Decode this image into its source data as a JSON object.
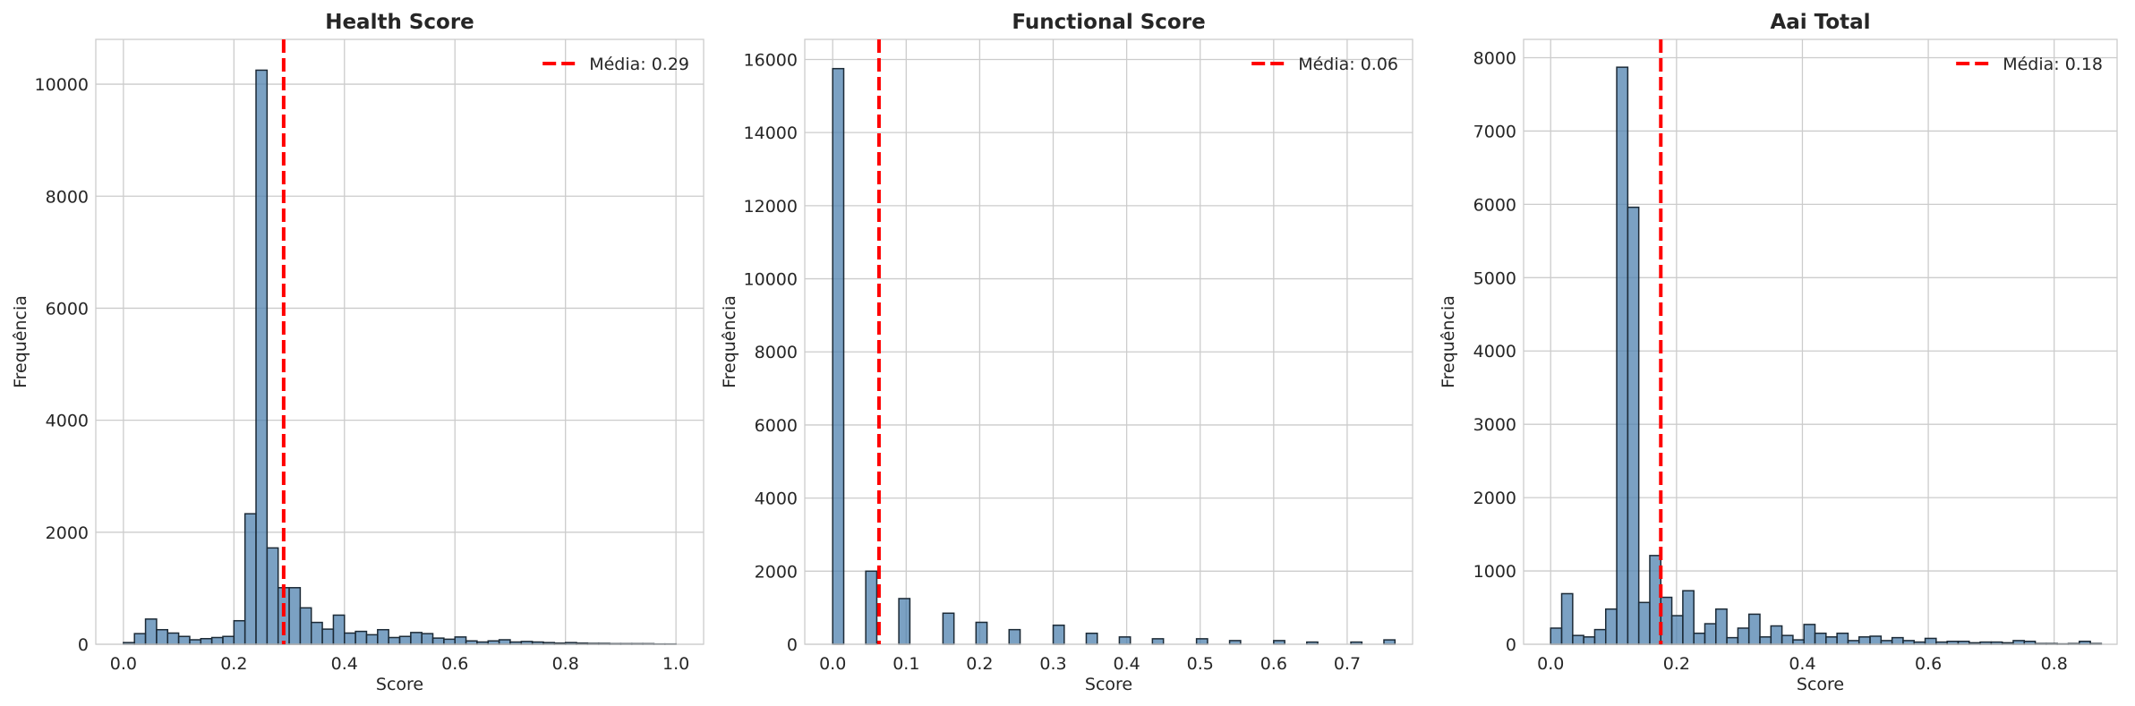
{
  "bar_color": "#4f81af",
  "edge_color": "#1c2a36",
  "mean_color": "#ff0000",
  "chart_data": [
    {
      "type": "bar",
      "title": "Health Score",
      "xlabel": "Score",
      "ylabel": "Frequência",
      "xlim": [
        -0.05,
        1.05
      ],
      "ylim": [
        0,
        10800
      ],
      "xticks": [
        0.0,
        0.2,
        0.4,
        0.6,
        0.8,
        1.0
      ],
      "xtick_labels": [
        "0.0",
        "0.2",
        "0.4",
        "0.6",
        "0.8",
        "1.0"
      ],
      "yticks": [
        0,
        2000,
        4000,
        6000,
        8000,
        10000
      ],
      "ytick_labels": [
        "0",
        "2000",
        "4000",
        "6000",
        "8000",
        "10000"
      ],
      "bin_width": 0.02,
      "bins_start": 0.0,
      "values": [
        30,
        190,
        450,
        260,
        200,
        140,
        80,
        100,
        120,
        140,
        420,
        2330,
        10250,
        1720,
        1010,
        1010,
        650,
        390,
        270,
        520,
        200,
        230,
        170,
        260,
        120,
        140,
        210,
        190,
        110,
        90,
        130,
        60,
        40,
        60,
        80,
        40,
        50,
        40,
        30,
        20,
        30,
        20,
        15,
        15,
        10,
        10,
        10,
        10,
        5,
        5
      ],
      "mean": 0.29,
      "legend": "Média: 0.29",
      "legend_loc": "upper right",
      "grid": true
    },
    {
      "type": "bar",
      "title": "Functional Score",
      "xlabel": "Score",
      "ylabel": "Frequência",
      "xlim": [
        -0.038,
        0.789
      ],
      "ylim": [
        0,
        16550
      ],
      "xticks": [
        0.0,
        0.1,
        0.2,
        0.3,
        0.4,
        0.5,
        0.6,
        0.7
      ],
      "xtick_labels": [
        "0.0",
        "0.1",
        "0.2",
        "0.3",
        "0.4",
        "0.5",
        "0.6",
        "0.7"
      ],
      "yticks": [
        0,
        2000,
        4000,
        6000,
        8000,
        10000,
        12000,
        14000,
        16000
      ],
      "ytick_labels": [
        "0",
        "2000",
        "4000",
        "6000",
        "8000",
        "10000",
        "12000",
        "14000",
        "16000"
      ],
      "bin_width": 0.015,
      "bins_start": 0.0,
      "values": [
        15750,
        0,
        0,
        2000,
        0,
        0,
        1250,
        0,
        0,
        0,
        850,
        0,
        0,
        600,
        0,
        0,
        400,
        0,
        0,
        0,
        520,
        0,
        0,
        300,
        0,
        0,
        200,
        0,
        0,
        150,
        0,
        0,
        0,
        150,
        0,
        0,
        100,
        0,
        0,
        0,
        100,
        0,
        0,
        60,
        0,
        0,
        0,
        60,
        0,
        0,
        120
      ],
      "mean": 0.063,
      "legend": "Média: 0.06",
      "legend_loc": "upper right",
      "grid": true
    },
    {
      "type": "bar",
      "title": "Aai Total",
      "xlabel": "Score",
      "ylabel": "Frequência",
      "xlim": [
        -0.043,
        0.9
      ],
      "ylim": [
        0,
        8250
      ],
      "xticks": [
        0.0,
        0.2,
        0.4,
        0.6,
        0.8
      ],
      "xtick_labels": [
        "0.0",
        "0.2",
        "0.4",
        "0.6",
        "0.8"
      ],
      "yticks": [
        0,
        1000,
        2000,
        3000,
        4000,
        5000,
        6000,
        7000,
        8000
      ],
      "ytick_labels": [
        "0",
        "1000",
        "2000",
        "3000",
        "4000",
        "5000",
        "6000",
        "7000",
        "8000"
      ],
      "bin_width": 0.0175,
      "bins_start": 0.0,
      "values": [
        220,
        690,
        120,
        100,
        200,
        480,
        7870,
        5960,
        570,
        1210,
        640,
        390,
        730,
        150,
        280,
        480,
        90,
        220,
        410,
        100,
        250,
        120,
        60,
        270,
        150,
        100,
        150,
        50,
        100,
        110,
        50,
        90,
        50,
        30,
        80,
        30,
        40,
        40,
        20,
        30,
        30,
        20,
        50,
        40,
        10,
        10,
        5,
        10,
        40,
        10
      ],
      "mean": 0.175,
      "legend": "Média: 0.18",
      "legend_loc": "upper right",
      "grid": true
    }
  ]
}
